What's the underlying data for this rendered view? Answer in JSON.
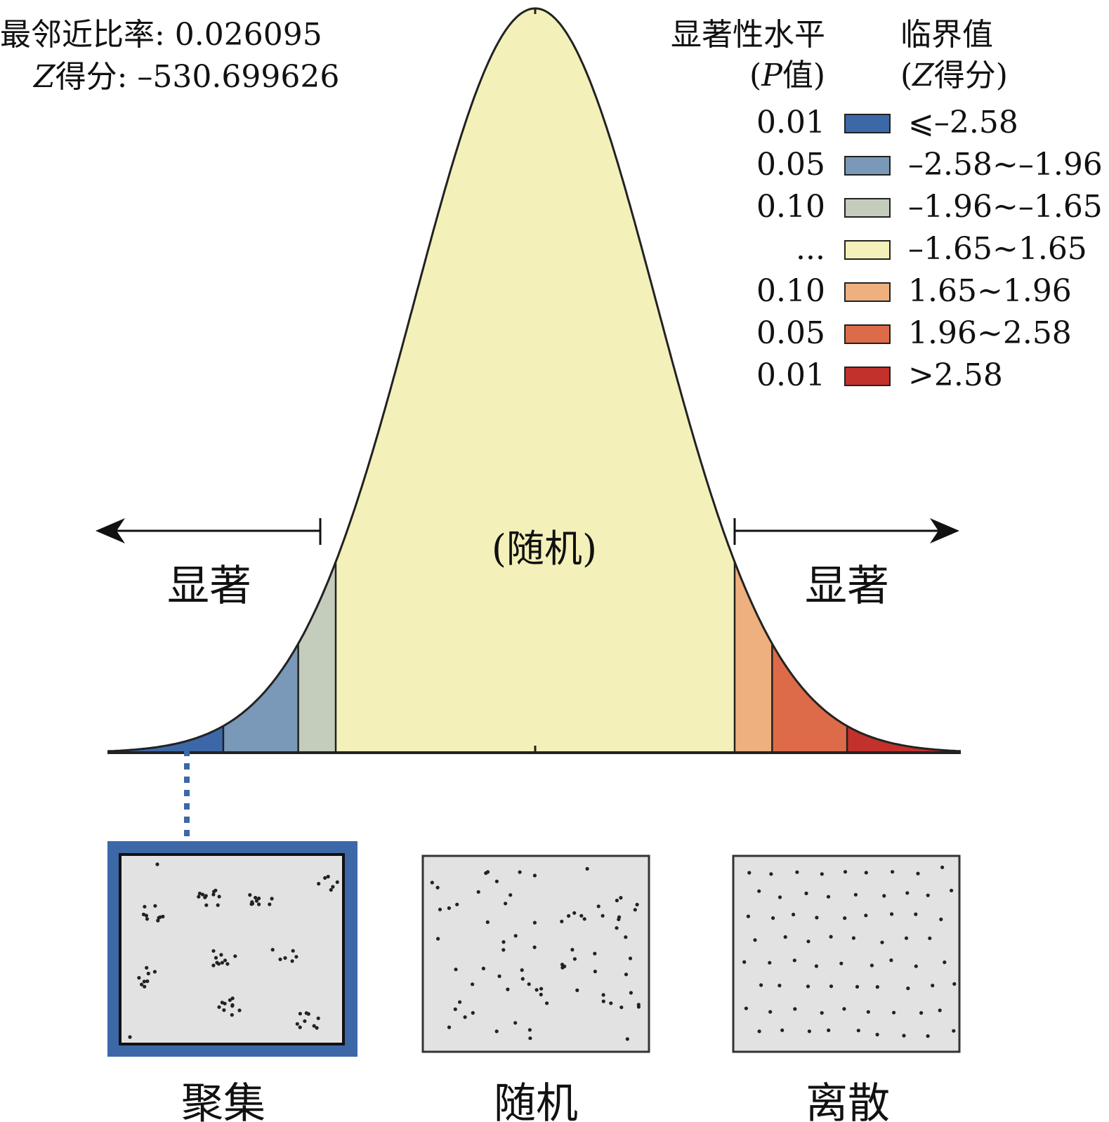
{
  "stats": {
    "ratio_label": "最邻近比率: 0.026095",
    "z_label_var": "Z",
    "z_label_rest": "得分: –530.699626"
  },
  "legend": {
    "p_header_1": "显著性水平",
    "p_header_2_open": "(",
    "p_header_2_var": "P",
    "p_header_2_rest": "值)",
    "z_header_1": "临界值",
    "z_header_2_open": "(",
    "z_header_2_var": "Z",
    "z_header_2_rest": "得分)",
    "rows": [
      {
        "p": "0.01",
        "z": "⩽–2.58",
        "color": "#3d68a8"
      },
      {
        "p": "0.05",
        "z": "–2.58~–1.96",
        "color": "#7a98b8"
      },
      {
        "p": "0.10",
        "z": "–1.96~–1.65",
        "color": "#c4cdbc"
      },
      {
        "p": "...",
        "z": "–1.65~1.65",
        "color": "#f3f1b9"
      },
      {
        "p": "0.10",
        "z": "1.65~1.96",
        "color": "#eeb07e"
      },
      {
        "p": "0.05",
        "z": "1.96~2.58",
        "color": "#dd6b4a"
      },
      {
        "p": "0.01",
        "z": ">2.58",
        "color": "#c2312c"
      }
    ]
  },
  "curve": {
    "center_label": "(随机)",
    "left_label": "显著",
    "right_label": "显著"
  },
  "patterns": [
    {
      "label": "聚集",
      "highlight_color": "#3d68a8"
    },
    {
      "label": "随机"
    },
    {
      "label": "离散"
    }
  ]
}
